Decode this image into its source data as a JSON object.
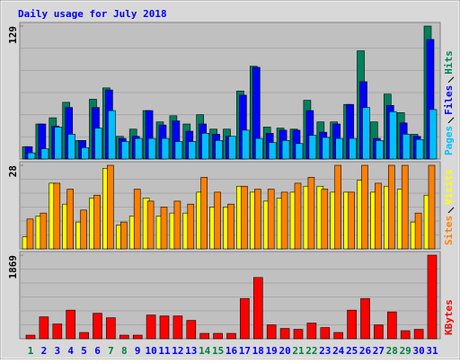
{
  "chart_data": [
    {
      "type": "bar",
      "title": "Daily usage for July 2018",
      "ylim": [
        0,
        129
      ],
      "yticks": [
        129
      ],
      "series": [
        {
          "name": "Pages",
          "color": "#00c0ff",
          "values": [
            6,
            10,
            31,
            24,
            11,
            30,
            47,
            17,
            20,
            20,
            20,
            17,
            17,
            25,
            18,
            22,
            28,
            20,
            16,
            18,
            15,
            23,
            21,
            20,
            20,
            50,
            18,
            46,
            24,
            19,
            48
          ]
        },
        {
          "name": "Files",
          "color": "#0000ff",
          "values": [
            12,
            34,
            32,
            50,
            18,
            50,
            67,
            20,
            22,
            47,
            33,
            37,
            27,
            34,
            24,
            22,
            62,
            89,
            25,
            28,
            28,
            47,
            26,
            34,
            53,
            75,
            20,
            52,
            35,
            22,
            116
          ]
        },
        {
          "name": "Hits",
          "color": "#00805c",
          "values": [
            12,
            34,
            40,
            55,
            18,
            58,
            69,
            22,
            29,
            47,
            36,
            42,
            34,
            43,
            29,
            29,
            66,
            90,
            31,
            30,
            29,
            57,
            36,
            36,
            53,
            105,
            36,
            63,
            45,
            24,
            129
          ]
        }
      ]
    },
    {
      "type": "bar",
      "ylim": [
        0,
        28
      ],
      "yticks": [
        28
      ],
      "series": [
        {
          "name": "Sites",
          "color": "#ff8000",
          "values": [
            10,
            12,
            22,
            20,
            13,
            18,
            28,
            9,
            20,
            16,
            14,
            16,
            15,
            24,
            19,
            15,
            21,
            20,
            20,
            19,
            22,
            24,
            20,
            28,
            19,
            28,
            22,
            28,
            28,
            12,
            28
          ]
        },
        {
          "name": "Visits",
          "color": "#ffff00",
          "values": [
            4,
            11,
            22,
            15,
            9,
            17,
            27,
            8,
            11,
            17,
            11,
            12,
            12,
            19,
            14,
            14,
            21,
            19,
            16,
            17,
            19,
            21,
            21,
            19,
            19,
            23,
            19,
            21,
            20,
            9,
            18
          ]
        }
      ]
    },
    {
      "type": "bar",
      "ylim": [
        0,
        1869
      ],
      "yticks": [
        1869
      ],
      "categories": [
        "1",
        "2",
        "3",
        "4",
        "5",
        "6",
        "7",
        "8",
        "9",
        "10",
        "11",
        "12",
        "13",
        "14",
        "15",
        "16",
        "17",
        "18",
        "19",
        "20",
        "21",
        "22",
        "23",
        "24",
        "25",
        "26",
        "27",
        "28",
        "29",
        "30",
        "31"
      ],
      "category_colors": [
        "#008040",
        "#0000ff",
        "#0000ff",
        "#0000ff",
        "#0000ff",
        "#0000ff",
        "#008040",
        "#008040",
        "#0000ff",
        "#0000ff",
        "#0000ff",
        "#0000ff",
        "#0000ff",
        "#008040",
        "#008040",
        "#0000ff",
        "#0000ff",
        "#0000ff",
        "#0000ff",
        "#0000ff",
        "#008040",
        "#008040",
        "#0000ff",
        "#0000ff",
        "#0000ff",
        "#0000ff",
        "#0000ff",
        "#008040",
        "#008040",
        "#0000ff",
        "#0000ff"
      ],
      "series": [
        {
          "name": "KBytes",
          "color": "#ff0000",
          "values": [
            80,
            490,
            330,
            640,
            140,
            570,
            470,
            80,
            80,
            530,
            510,
            510,
            410,
            120,
            120,
            120,
            900,
            1370,
            310,
            230,
            210,
            350,
            250,
            140,
            640,
            900,
            310,
            600,
            180,
            210,
            1869
          ]
        }
      ]
    }
  ]
}
